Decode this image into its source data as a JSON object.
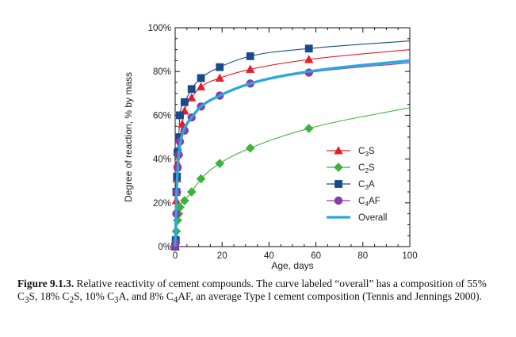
{
  "chart_data": {
    "type": "line",
    "xlabel": "Age, days",
    "ylabel": "Degree of reaction, % by mass",
    "xlim": [
      0,
      100
    ],
    "ylim": [
      0,
      100
    ],
    "xticks": [
      0,
      20,
      40,
      60,
      80,
      100
    ],
    "xtick_labels": [
      "0",
      "20",
      "40",
      "60",
      "80",
      "100"
    ],
    "yticks": [
      0,
      20,
      40,
      60,
      80,
      100
    ],
    "ytick_labels": [
      "0%",
      "20%",
      "40%",
      "60%",
      "80%",
      "100%"
    ],
    "grid": false,
    "legend_position": "right",
    "series": [
      {
        "name": "C3S",
        "label_main": "C",
        "label_sub": "3",
        "label_tail": "S",
        "color": "#e3202a",
        "marker": "triangle",
        "points": [
          [
            0,
            0
          ],
          [
            0.25,
            3
          ],
          [
            0.5,
            21
          ],
          [
            0.75,
            31
          ],
          [
            1,
            38
          ],
          [
            1.5,
            43
          ],
          [
            2,
            49
          ],
          [
            3,
            56
          ],
          [
            4,
            62
          ],
          [
            7,
            68
          ],
          [
            11,
            73
          ],
          [
            19,
            77
          ],
          [
            32,
            81
          ],
          [
            57,
            85.5
          ]
        ],
        "curve": [
          [
            0,
            0
          ],
          [
            0.25,
            3
          ],
          [
            0.5,
            21
          ],
          [
            0.75,
            31
          ],
          [
            1,
            38
          ],
          [
            1.5,
            43
          ],
          [
            2,
            49
          ],
          [
            3,
            56
          ],
          [
            4,
            62
          ],
          [
            7,
            68
          ],
          [
            11,
            73
          ],
          [
            19,
            77
          ],
          [
            32,
            81
          ],
          [
            57,
            85.5
          ],
          [
            100,
            90
          ]
        ]
      },
      {
        "name": "C2S",
        "label_main": "C",
        "label_sub": "2",
        "label_tail": "S",
        "color": "#3cb23c",
        "marker": "diamond",
        "points": [
          [
            0,
            0
          ],
          [
            0.25,
            3
          ],
          [
            0.5,
            7
          ],
          [
            1,
            12
          ],
          [
            1.5,
            15
          ],
          [
            2,
            18
          ],
          [
            4,
            21
          ],
          [
            7,
            25
          ],
          [
            11,
            31
          ],
          [
            19,
            38
          ],
          [
            32,
            45
          ],
          [
            57,
            54
          ]
        ],
        "curve": [
          [
            0,
            0
          ],
          [
            0.25,
            3
          ],
          [
            0.5,
            7
          ],
          [
            1,
            12
          ],
          [
            1.5,
            15
          ],
          [
            2,
            18
          ],
          [
            4,
            21
          ],
          [
            7,
            25
          ],
          [
            11,
            31
          ],
          [
            19,
            38
          ],
          [
            32,
            45
          ],
          [
            57,
            54
          ],
          [
            100,
            63.5
          ]
        ]
      },
      {
        "name": "C3A",
        "label_main": "C",
        "label_sub": "3",
        "label_tail": "A",
        "color": "#1a4a8c",
        "marker": "square",
        "points": [
          [
            0,
            0
          ],
          [
            0.25,
            3
          ],
          [
            0.5,
            25
          ],
          [
            0.75,
            32
          ],
          [
            1,
            43
          ],
          [
            1.5,
            50
          ],
          [
            2,
            60
          ],
          [
            4,
            66
          ],
          [
            7,
            72
          ],
          [
            11,
            77
          ],
          [
            19,
            82
          ],
          [
            32,
            87
          ],
          [
            57,
            90.5
          ]
        ],
        "curve": [
          [
            0,
            0
          ],
          [
            0.25,
            3
          ],
          [
            0.5,
            25
          ],
          [
            0.75,
            32
          ],
          [
            1,
            43
          ],
          [
            1.5,
            50
          ],
          [
            2,
            60
          ],
          [
            4,
            66
          ],
          [
            7,
            72
          ],
          [
            11,
            77
          ],
          [
            19,
            82
          ],
          [
            32,
            87
          ],
          [
            57,
            90.5
          ],
          [
            100,
            94
          ]
        ]
      },
      {
        "name": "C4AF",
        "label_main": "C",
        "label_sub": "4",
        "label_tail": "AF",
        "color": "#8c3aa4",
        "marker": "circle",
        "points": [
          [
            0,
            0
          ],
          [
            0.25,
            2
          ],
          [
            0.5,
            15
          ],
          [
            0.75,
            25
          ],
          [
            1,
            36
          ],
          [
            1.5,
            42
          ],
          [
            2,
            48
          ],
          [
            4,
            53
          ],
          [
            7,
            59
          ],
          [
            11,
            64
          ],
          [
            19,
            69
          ],
          [
            32,
            74.5
          ],
          [
            57,
            79.5
          ]
        ],
        "curve": [
          [
            0,
            0
          ],
          [
            0.25,
            2
          ],
          [
            0.5,
            15
          ],
          [
            0.75,
            25
          ],
          [
            1,
            36
          ],
          [
            1.5,
            42
          ],
          [
            2,
            48
          ],
          [
            4,
            53
          ],
          [
            7,
            59
          ],
          [
            11,
            64
          ],
          [
            19,
            69
          ],
          [
            32,
            74.5
          ],
          [
            57,
            79.5
          ],
          [
            100,
            84
          ]
        ]
      },
      {
        "name": "Overall",
        "color": "#2aa8de",
        "marker": "none",
        "curve": [
          [
            0,
            0
          ],
          [
            0.5,
            20
          ],
          [
            1,
            34
          ],
          [
            2,
            46
          ],
          [
            4,
            54
          ],
          [
            7,
            59
          ],
          [
            11,
            64
          ],
          [
            19,
            69
          ],
          [
            32,
            74.5
          ],
          [
            57,
            80
          ],
          [
            100,
            85
          ]
        ]
      }
    ]
  },
  "caption": {
    "label": "Figure 9.1.3.",
    "parts": [
      " Relative reactivity of cement compounds. The curve labeled “overall” has a composition of 55% C",
      "3",
      "S, 18% C",
      "2",
      "S, 10% C",
      "3",
      "A, and 8% C",
      "4",
      "AF, an average Type I cement composition (Tennis and Jennings 2000)."
    ]
  }
}
